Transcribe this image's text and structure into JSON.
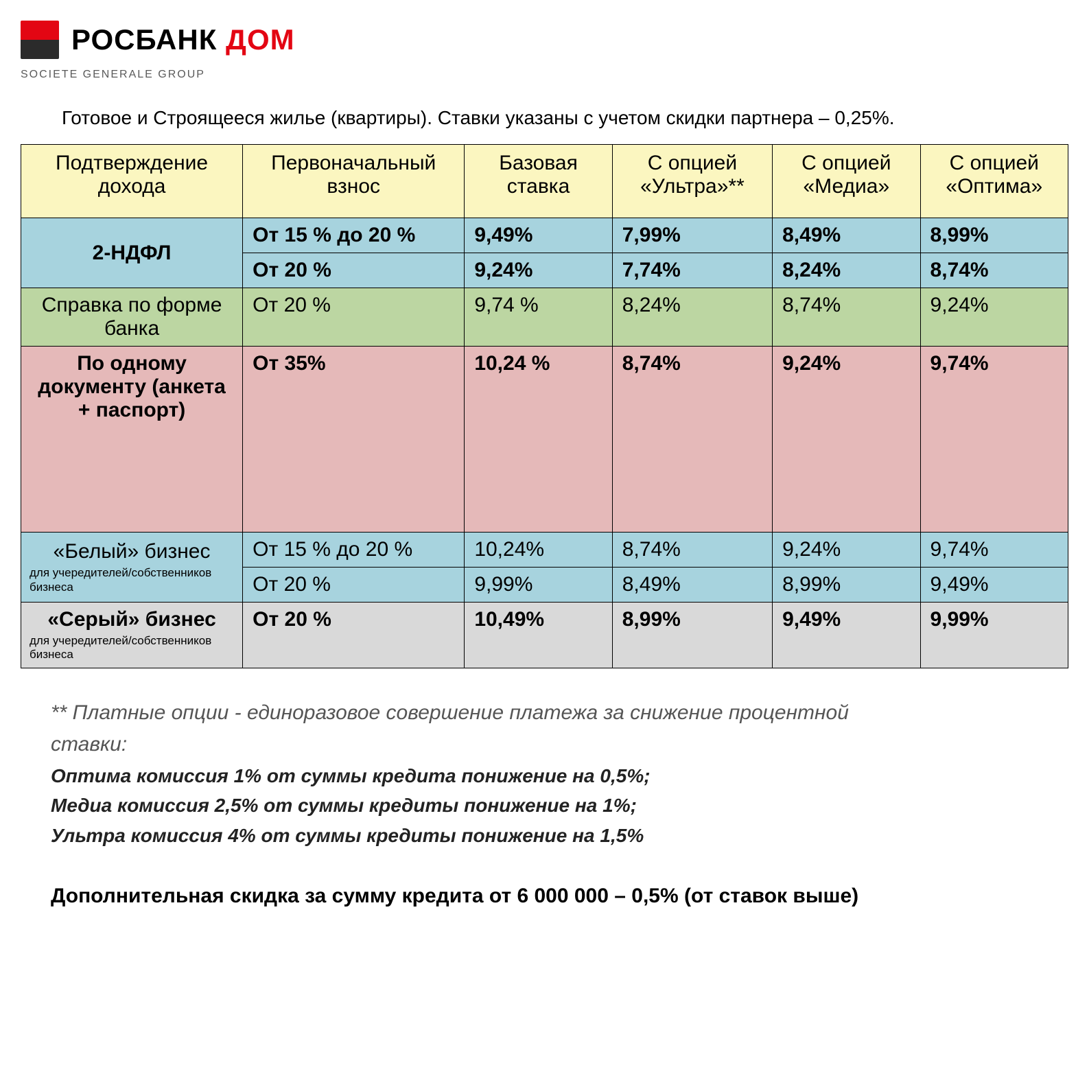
{
  "brand": {
    "main": "РОСБАНК",
    "accent": "ДОМ",
    "sub": "SOCIETE GENERALE GROUP"
  },
  "intro": "Готовое и Строящееся жилье (квартиры). Ставки указаны с учетом скидки партнера – 0,25%.",
  "colors": {
    "header_bg": "#fbf6c0",
    "blue_bg": "#a7d3de",
    "green_bg": "#bcd6a2",
    "pink_bg": "#e5b9b9",
    "grey_bg": "#d9d9d9",
    "border": "#000000"
  },
  "headers": [
    "Подтверждение дохода",
    "Первоначальный взнос",
    "Базовая ставка",
    "С опцией «Ультра»**",
    "С опцией «Медиа»",
    "С опцией «Оптима»"
  ],
  "rows": [
    {
      "label": "2-НДФЛ",
      "label_bold": true,
      "bg": "blue_bg",
      "sub": [
        {
          "cells": [
            "От 15 % до 20 %",
            "9,49%",
            "7,99%",
            "8,49%",
            "8,99%"
          ],
          "bold": true
        },
        {
          "cells": [
            "От 20 %",
            "9,24%",
            "7,74%",
            "8,24%",
            "8,74%"
          ],
          "bold": true
        }
      ]
    },
    {
      "label": "Справка по форме банка",
      "label_bold": false,
      "bg": "green_bg",
      "sub": [
        {
          "cells": [
            "От 20 %",
            "9,74 %",
            "8,24%",
            "8,74%",
            "9,24%"
          ],
          "bold": false
        }
      ]
    },
    {
      "label": "По одному документу (анкета + паспорт)",
      "label_bold": true,
      "bg": "pink_bg",
      "tall": true,
      "sub": [
        {
          "cells": [
            "От 35%",
            "10,24 %",
            "8,74%",
            "9,24%",
            "9,74%"
          ],
          "bold": true
        }
      ]
    },
    {
      "label": "«Белый» бизнес",
      "label_bold": false,
      "bg": "blue_bg",
      "subnote": "для учередителей/собственников бизнеса",
      "sub": [
        {
          "cells": [
            "От 15 % до 20 %",
            "10,24%",
            "8,74%",
            "9,24%",
            "9,74%"
          ],
          "bold": false
        },
        {
          "cells": [
            "От 20 %",
            "9,99%",
            "8,49%",
            "8,99%",
            "9,49%"
          ],
          "bold": false
        }
      ]
    },
    {
      "label": "«Серый» бизнес",
      "label_bold": true,
      "bg": "grey_bg",
      "subnote": "для учередителей/собственников бизнеса",
      "sub": [
        {
          "cells": [
            "От 20 %",
            "10,49%",
            "8,99%",
            "9,49%",
            "9,99%"
          ],
          "bold": true
        }
      ]
    }
  ],
  "footnote_lead": "** Платные опции - единоразовое совершение платежа за снижение процентной ставки:",
  "footnote_lines": [
    "Оптима комиссия 1% от суммы кредита понижение на 0,5%;",
    "Медиа комиссия 2,5% от суммы кредиты понижение на 1%;",
    "Ультра комиссия  4% от суммы кредиты понижение на 1,5%"
  ],
  "extra_discount": "Дополнительная скидка за сумму кредита от 6 000 000 – 0,5% (от ставок выше)"
}
